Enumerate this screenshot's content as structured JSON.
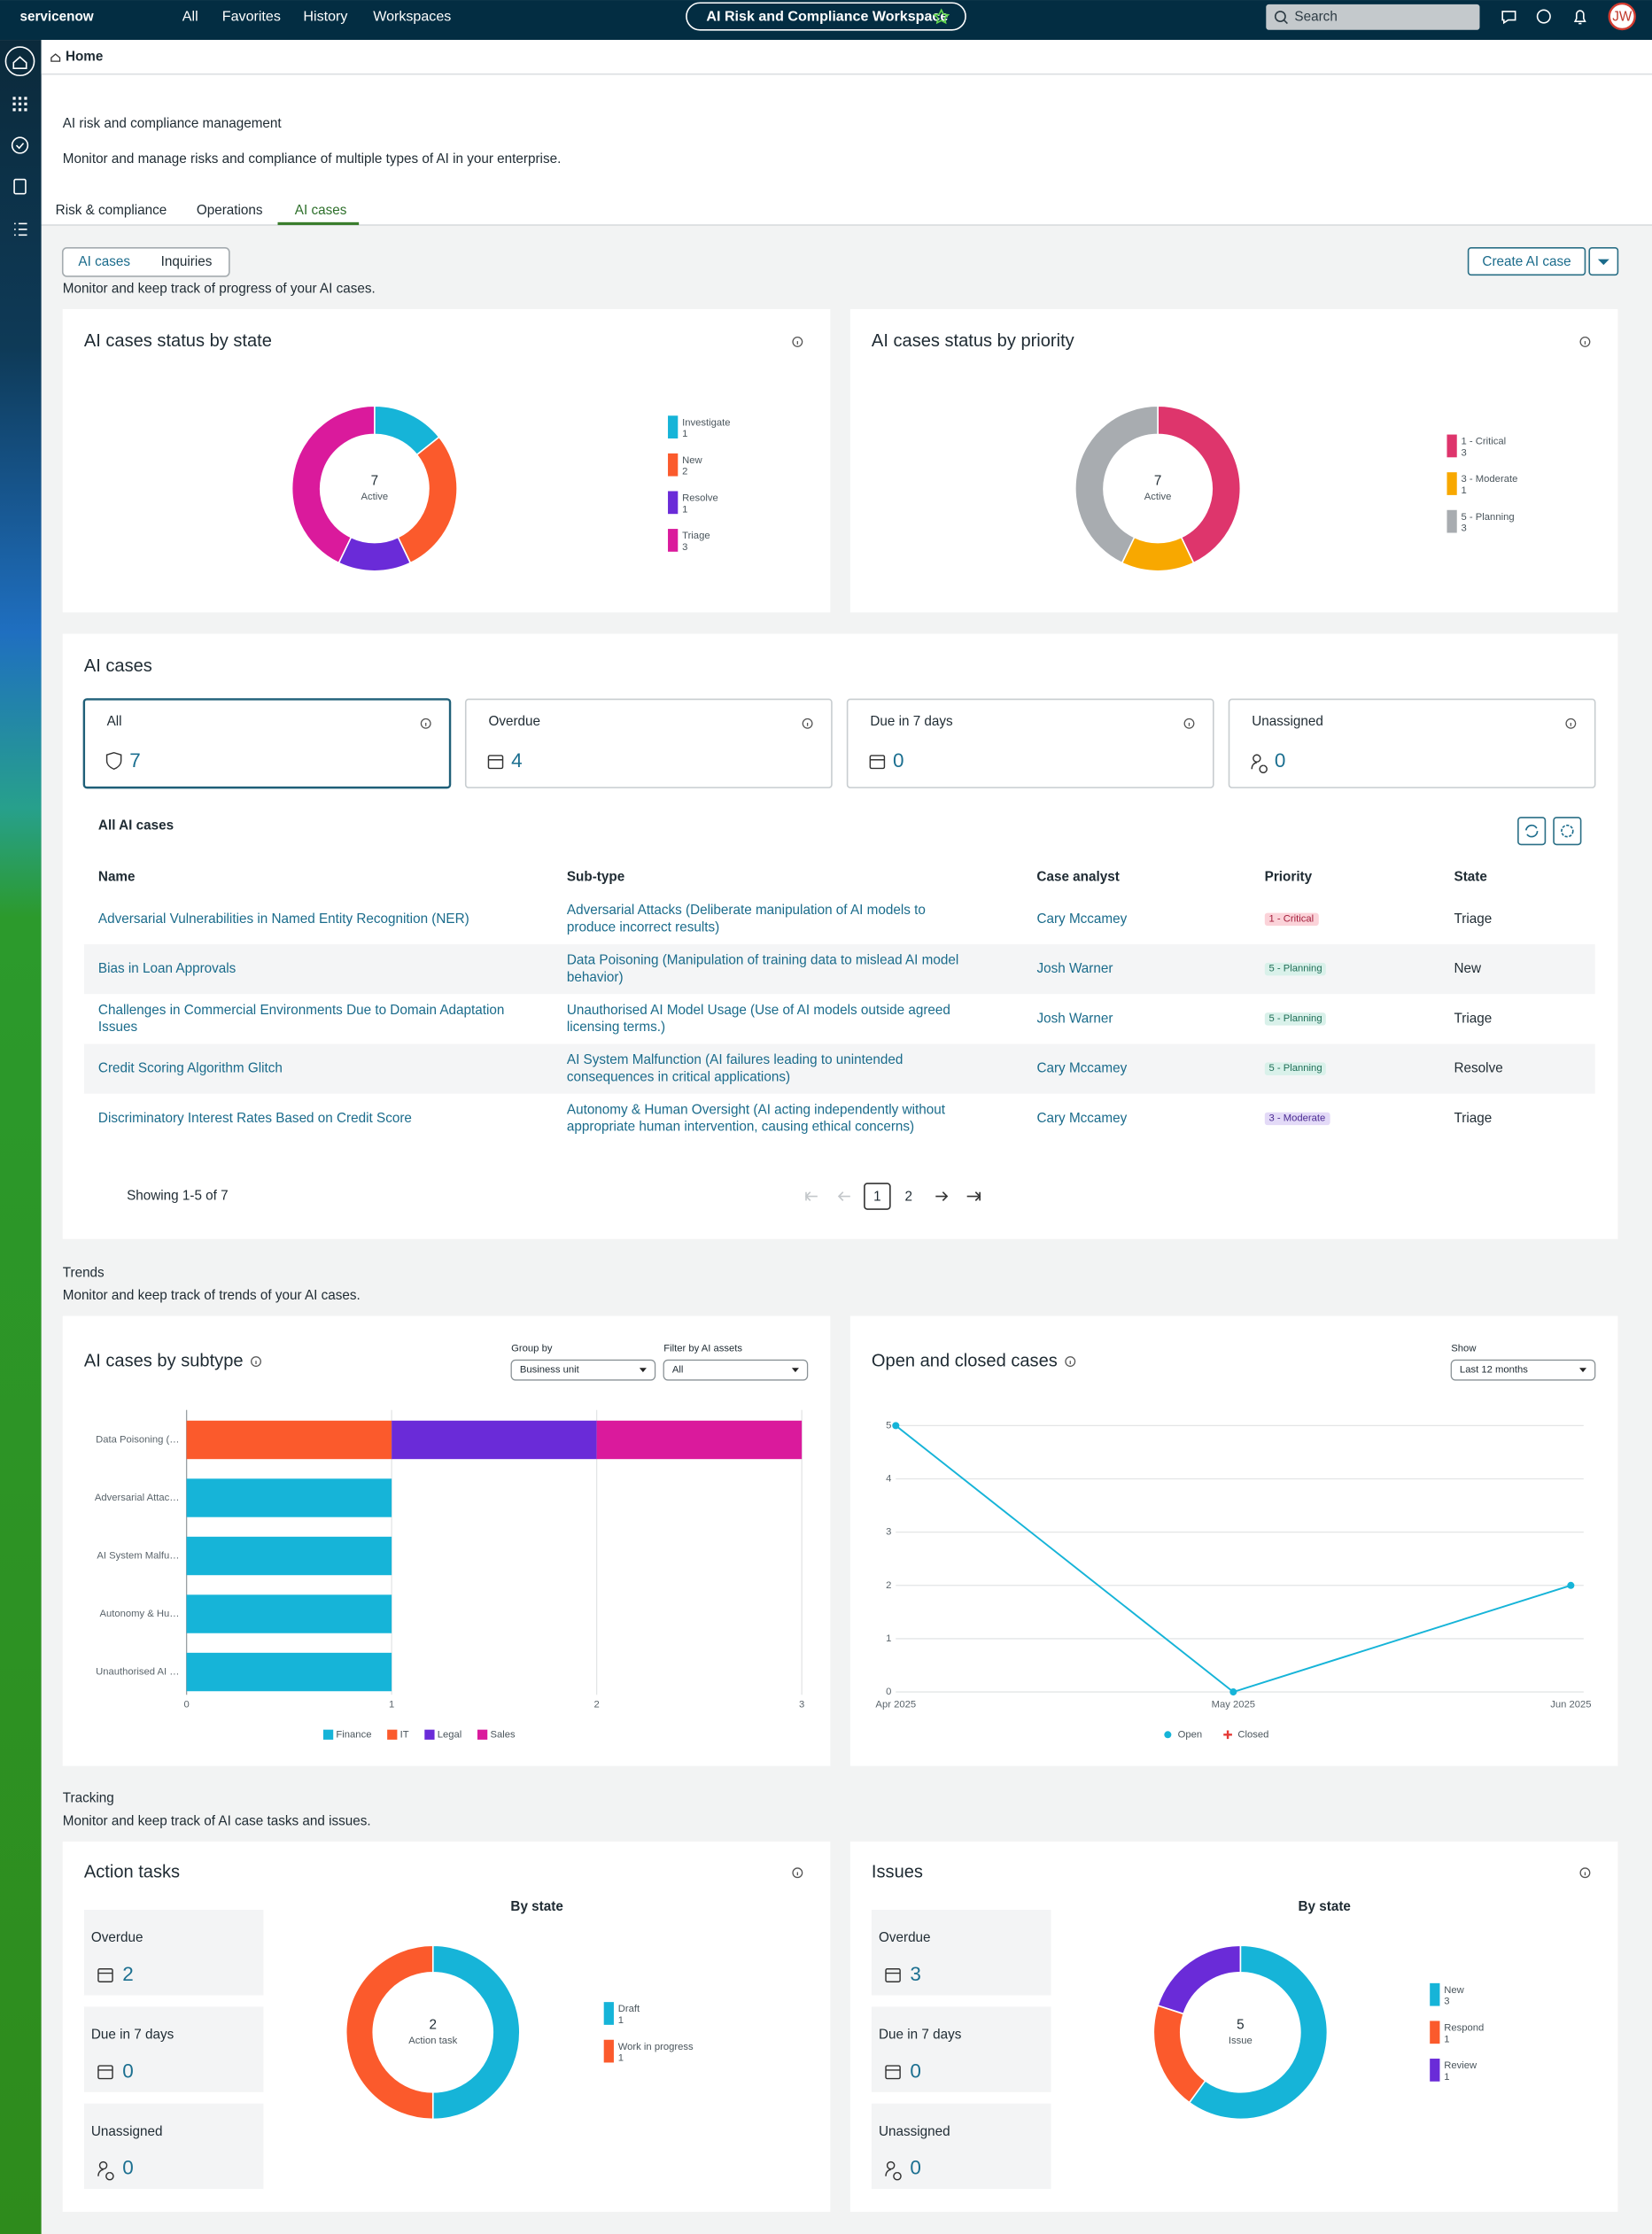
{
  "nav": {
    "logo": "servicenow",
    "links": [
      "All",
      "Favorites",
      "History",
      "Workspaces"
    ],
    "workspace": "AI Risk and Compliance Workspace",
    "search": "Search",
    "avatar": "JW"
  },
  "breadcrumb": "Home",
  "header": {
    "title": "AI risk and compliance management",
    "subtitle": "Monitor and manage risks and compliance of multiple types of AI in your enterprise.",
    "tabs": [
      "Risk & compliance",
      "Operations",
      "AI cases"
    ]
  },
  "toolbar": {
    "toggle": [
      "AI cases",
      "Inquiries"
    ],
    "note": "Monitor and keep track of progress of your AI cases.",
    "button": "Create AI case"
  },
  "status_charts": [
    {
      "type": "pie",
      "title": "AI cases status by state",
      "center_value": 7,
      "center_label": "Active",
      "segments": [
        {
          "name": "Investigate",
          "value": 1,
          "color": "#16b4d8"
        },
        {
          "name": "New",
          "value": 2,
          "color": "#fb5a2c"
        },
        {
          "name": "Resolve",
          "value": 1,
          "color": "#6a2bd8"
        },
        {
          "name": "Triage",
          "value": 3,
          "color": "#da1a9c"
        }
      ]
    },
    {
      "type": "pie",
      "title": "AI cases status by priority",
      "center_value": 7,
      "center_label": "Active",
      "segments": [
        {
          "name": "1 - Critical",
          "value": 3,
          "color": "#de356c"
        },
        {
          "name": "3 - Moderate",
          "value": 1,
          "color": "#f8a800"
        },
        {
          "name": "5 - Planning",
          "value": 3,
          "color": "#a8acb0"
        }
      ]
    }
  ],
  "cases": {
    "title": "AI cases",
    "cards": [
      {
        "label": "All",
        "value": 7
      },
      {
        "label": "Overdue",
        "value": 4
      },
      {
        "label": "Due in 7 days",
        "value": 0
      },
      {
        "label": "Unassigned",
        "value": 0
      }
    ],
    "table": {
      "title": "All AI cases",
      "columns": [
        "Name",
        "Sub-type",
        "Case analyst",
        "Priority",
        "State"
      ],
      "rows": [
        {
          "cells": [
            "Adversarial Vulnerabilities in Named Entity Recognition (NER)",
            "Adversarial Attacks (Deliberate manipulation of AI models to produce incorrect results)",
            "Cary Mccamey",
            "1 - Critical",
            "Triage"
          ],
          "badge": [
            "#fbd3d9",
            "#a31d3b"
          ]
        },
        {
          "cells": [
            "Bias in Loan Approvals",
            "Data Poisoning (Manipulation of training data to mislead AI model behavior)",
            "Josh Warner",
            "5 - Planning",
            "New"
          ],
          "badge": [
            "#d9f1ea",
            "#1f6e57"
          ]
        },
        {
          "cells": [
            "Challenges in Commercial Environments Due to Domain Adaptation Issues",
            "Unauthorised AI Model Usage (Use of AI models outside agreed licensing terms.)",
            "Josh Warner",
            "5 - Planning",
            "Triage"
          ],
          "badge": [
            "#d9f1ea",
            "#1f6e57"
          ]
        },
        {
          "cells": [
            "Credit Scoring Algorithm Glitch",
            "AI System Malfunction (AI failures leading to unintended consequences in critical applications)",
            "Cary Mccamey",
            "5 - Planning",
            "Resolve"
          ],
          "badge": [
            "#d9f1ea",
            "#1f6e57"
          ]
        },
        {
          "cells": [
            "Discriminatory Interest Rates Based on Credit Score",
            "Autonomy & Human Oversight (AI acting independently without appropriate human intervention, causing ethical concerns)",
            "Cary Mccamey",
            "3 - Moderate",
            "Triage"
          ],
          "badge": [
            "#e3daf7",
            "#4a2a92"
          ]
        }
      ]
    },
    "footer": "Showing 1-5 of 7",
    "pages": [
      1,
      2
    ]
  },
  "trends": {
    "title": "Trends",
    "subtitle": "Monitor and keep track of trends of your AI cases."
  },
  "chart_data": [
    {
      "type": "bar",
      "title": "AI cases by subtype",
      "controls": [
        {
          "label": "Group by",
          "value": "Business unit"
        },
        {
          "label": "Filter by AI assets",
          "value": "All"
        }
      ],
      "categories": [
        "Data Poisoning (…",
        "Adversarial Attac…",
        "AI System Malfu…",
        "Autonomy & Hu…",
        "Unauthorised AI …"
      ],
      "series": [
        {
          "name": "Finance",
          "color": "#16b4d8",
          "values": [
            0,
            1,
            1,
            1,
            1
          ]
        },
        {
          "name": "IT",
          "color": "#fb5a2c",
          "values": [
            1,
            0,
            0,
            0,
            0
          ]
        },
        {
          "name": "Legal",
          "color": "#6a2bd8",
          "values": [
            1,
            0,
            0,
            0,
            0
          ]
        },
        {
          "name": "Sales",
          "color": "#da1a9c",
          "values": [
            1,
            0,
            0,
            0,
            0
          ]
        }
      ],
      "xlim": [
        0,
        3
      ],
      "xticks": [
        0,
        1,
        2,
        3
      ],
      "grid": true
    },
    {
      "type": "line",
      "title": "Open and closed cases",
      "controls": [
        {
          "label": "Show",
          "value": "Last 12 months"
        }
      ],
      "categories": [
        "Apr 2025",
        "May 2025",
        "Jun 2025"
      ],
      "series": [
        {
          "name": "Open",
          "color": "#16b4d8",
          "marker": "circle",
          "values": [
            5,
            0,
            2
          ]
        },
        {
          "name": "Closed",
          "color": "#e53935",
          "marker": "plus",
          "values": [
            null,
            null,
            null
          ]
        }
      ],
      "ylim": [
        0,
        5
      ],
      "yticks": [
        0,
        1,
        2,
        3,
        4,
        5
      ],
      "grid": true
    }
  ],
  "tracking": {
    "title": "Tracking",
    "subtitle": "Monitor and keep track of AI case tasks and issues.",
    "panels": [
      {
        "title": "Action tasks",
        "stats": [
          {
            "label": "Overdue",
            "value": 2
          },
          {
            "label": "Due in 7 days",
            "value": 0
          },
          {
            "label": "Unassigned",
            "value": 0
          }
        ],
        "chart": {
          "type": "pie",
          "title": "By state",
          "center_value": 2,
          "center_label": "Action task",
          "segments": [
            {
              "name": "Draft",
              "value": 1,
              "color": "#16b4d8"
            },
            {
              "name": "Work in progress",
              "value": 1,
              "color": "#fb5a2c"
            }
          ]
        }
      },
      {
        "title": "Issues",
        "stats": [
          {
            "label": "Overdue",
            "value": 3
          },
          {
            "label": "Due in 7 days",
            "value": 0
          },
          {
            "label": "Unassigned",
            "value": 0
          }
        ],
        "chart": {
          "type": "pie",
          "title": "By state",
          "center_value": 5,
          "center_label": "Issue",
          "segments": [
            {
              "name": "New",
              "value": 3,
              "color": "#16b4d8"
            },
            {
              "name": "Respond",
              "value": 1,
              "color": "#fb5a2c"
            },
            {
              "name": "Review",
              "value": 1,
              "color": "#6a2bd8"
            }
          ]
        }
      }
    ]
  }
}
